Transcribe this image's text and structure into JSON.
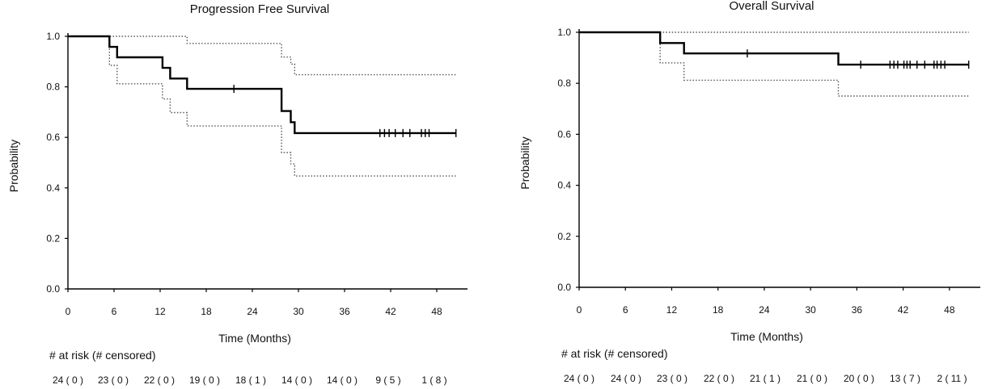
{
  "chart_data": [
    {
      "type": "line",
      "subtype": "kaplan-meier",
      "title": "Progression Free Survival",
      "xlabel": "Time (Months)",
      "ylabel": "Probability",
      "xlim": [
        0,
        52
      ],
      "ylim": [
        0,
        1
      ],
      "x_ticks": [
        0,
        6,
        12,
        18,
        24,
        30,
        36,
        42,
        48
      ],
      "y_ticks": [
        "0.0",
        "0.2",
        "0.4",
        "0.6",
        "0.8",
        "1.0"
      ],
      "series": [
        {
          "name": "Survival estimate",
          "style": "solid",
          "points": [
            [
              0,
              1.0
            ],
            [
              5.4,
              1.0
            ],
            [
              5.4,
              0.958
            ],
            [
              6.4,
              0.958
            ],
            [
              6.4,
              0.917
            ],
            [
              12.3,
              0.917
            ],
            [
              12.3,
              0.875
            ],
            [
              13.3,
              0.875
            ],
            [
              13.3,
              0.833
            ],
            [
              15.5,
              0.833
            ],
            [
              15.5,
              0.792
            ],
            [
              27.8,
              0.792
            ],
            [
              27.8,
              0.704
            ],
            [
              29.0,
              0.704
            ],
            [
              29.0,
              0.66
            ],
            [
              29.5,
              0.66
            ],
            [
              29.5,
              0.617
            ],
            [
              50.5,
              0.617
            ]
          ],
          "censored": [
            21.6,
            40.6,
            41.2,
            41.8,
            42.6,
            43.6,
            44.5,
            46.0,
            46.5,
            47.0,
            50.5
          ]
        },
        {
          "name": "Upper 95% CI",
          "style": "dotted",
          "points": [
            [
              0,
              1.0
            ],
            [
              15.5,
              1.0
            ],
            [
              15.5,
              0.972
            ],
            [
              27.8,
              0.972
            ],
            [
              27.8,
              0.918
            ],
            [
              29.0,
              0.918
            ],
            [
              29.0,
              0.89
            ],
            [
              29.5,
              0.89
            ],
            [
              29.5,
              0.848
            ],
            [
              50.5,
              0.848
            ]
          ]
        },
        {
          "name": "Lower 95% CI",
          "style": "dotted",
          "points": [
            [
              0,
              1.0
            ],
            [
              5.4,
              1.0
            ],
            [
              5.4,
              0.885
            ],
            [
              6.4,
              0.885
            ],
            [
              6.4,
              0.812
            ],
            [
              12.3,
              0.812
            ],
            [
              12.3,
              0.752
            ],
            [
              13.3,
              0.752
            ],
            [
              13.3,
              0.698
            ],
            [
              15.5,
              0.698
            ],
            [
              15.5,
              0.645
            ],
            [
              27.8,
              0.645
            ],
            [
              27.8,
              0.54
            ],
            [
              29.0,
              0.54
            ],
            [
              29.0,
              0.495
            ],
            [
              29.5,
              0.495
            ],
            [
              29.5,
              0.447
            ],
            [
              50.5,
              0.447
            ]
          ]
        }
      ],
      "risk_table": {
        "title": "# at risk (# censored)",
        "values": [
          "24 ( 0 )",
          "23 ( 0 )",
          "22 ( 0 )",
          "19 ( 0 )",
          "18 ( 1 )",
          "14 ( 0 )",
          "14 ( 0 )",
          "9 ( 5 )",
          "1 ( 8 )"
        ]
      }
    },
    {
      "type": "line",
      "subtype": "kaplan-meier",
      "title": "Overall Survival",
      "xlabel": "Time (Months)",
      "ylabel": "Probability",
      "xlim": [
        0,
        52
      ],
      "ylim": [
        0,
        1
      ],
      "x_ticks": [
        0,
        6,
        12,
        18,
        24,
        30,
        36,
        42,
        48
      ],
      "y_ticks": [
        "0.0",
        "0.2",
        "0.4",
        "0.6",
        "0.8",
        "1.0"
      ],
      "series": [
        {
          "name": "Survival estimate",
          "style": "solid",
          "points": [
            [
              0,
              1.0
            ],
            [
              10.5,
              1.0
            ],
            [
              10.5,
              0.958
            ],
            [
              13.6,
              0.958
            ],
            [
              13.6,
              0.917
            ],
            [
              33.6,
              0.917
            ],
            [
              33.6,
              0.873
            ],
            [
              50.5,
              0.873
            ]
          ],
          "censored": [
            21.8,
            36.5,
            40.3,
            40.8,
            41.3,
            42.1,
            42.5,
            42.9,
            43.8,
            44.8,
            46.0,
            46.4,
            46.9,
            47.4,
            50.5
          ]
        },
        {
          "name": "Upper 95% CI",
          "style": "dotted",
          "points": [
            [
              0,
              1.0
            ],
            [
              50.5,
              1.0
            ]
          ]
        },
        {
          "name": "Lower 95% CI",
          "style": "dotted",
          "points": [
            [
              0,
              1.0
            ],
            [
              10.5,
              1.0
            ],
            [
              10.5,
              0.88
            ],
            [
              13.6,
              0.88
            ],
            [
              13.6,
              0.812
            ],
            [
              33.6,
              0.812
            ],
            [
              33.6,
              0.75
            ],
            [
              50.5,
              0.75
            ]
          ]
        }
      ],
      "risk_table": {
        "title": "# at risk (# censored)",
        "values": [
          "24 ( 0 )",
          "24 ( 0 )",
          "23 ( 0 )",
          "22 ( 0 )",
          "21 ( 1 )",
          "21 ( 0 )",
          "20 ( 0 )",
          "13 ( 7 )",
          "2 ( 11 )"
        ]
      }
    }
  ]
}
